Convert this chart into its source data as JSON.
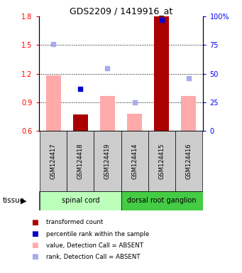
{
  "title": "GDS2209 / 1419916_at",
  "samples": [
    "GSM124417",
    "GSM124418",
    "GSM124419",
    "GSM124414",
    "GSM124415",
    "GSM124416"
  ],
  "ylim_left": [
    0.6,
    1.8
  ],
  "ylim_right": [
    0,
    100
  ],
  "yticks_left": [
    0.6,
    0.9,
    1.2,
    1.5,
    1.8
  ],
  "yticks_right": [
    0,
    25,
    50,
    75,
    100
  ],
  "ytick_right_labels": [
    "0",
    "25",
    "50",
    "75",
    "100%"
  ],
  "bar_values": [
    1.18,
    0.77,
    0.97,
    0.78,
    1.8,
    0.97
  ],
  "bar_absent": [
    true,
    false,
    true,
    true,
    false,
    true
  ],
  "percentile_dots": [
    null,
    37,
    null,
    null,
    97,
    null
  ],
  "percentile_absent": [
    null,
    false,
    null,
    null,
    false,
    null
  ],
  "rank_scatter": [
    76,
    null,
    55,
    25,
    null,
    46
  ],
  "rank_scatter_absent": [
    true,
    null,
    true,
    true,
    null,
    true
  ],
  "bar_color_present": "#aa0000",
  "bar_color_absent": "#ffaaaa",
  "rank_color_present": "#0000cc",
  "rank_color_absent": "#aaaaee",
  "bg_color": "#ffffff",
  "sample_box_color": "#cccccc",
  "group_spinal_color": "#bbffbb",
  "group_drg_color": "#44cc44",
  "hgrid_lines": [
    0.9,
    1.2,
    1.5
  ],
  "legend_items": [
    {
      "color": "#aa0000",
      "label": "transformed count"
    },
    {
      "color": "#0000cc",
      "label": "percentile rank within the sample"
    },
    {
      "color": "#ffaaaa",
      "label": "value, Detection Call = ABSENT"
    },
    {
      "color": "#aaaaee",
      "label": "rank, Detection Call = ABSENT"
    }
  ]
}
